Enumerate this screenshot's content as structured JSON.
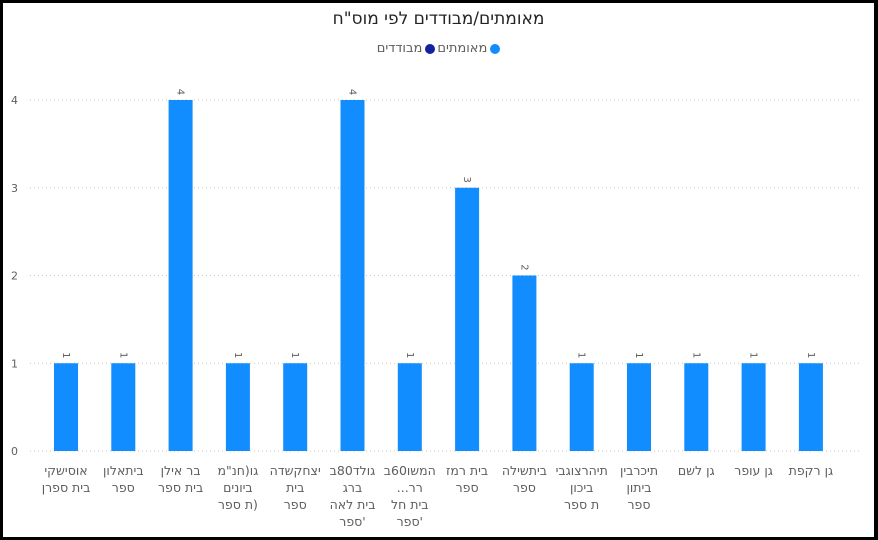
{
  "chart_data": {
    "type": "bar",
    "title": "מאומתים/מבודדים לפי מוס\"ח",
    "legend": [
      {
        "name": "מאומתים",
        "color": "#118dff"
      },
      {
        "name": "מבודדים",
        "color": "#12239e"
      }
    ],
    "legend_position": "top-center",
    "categories": [
      [
        "אוסישקי",
        "בית ספרן"
      ],
      [
        "ביתאלון",
        "ספר"
      ],
      [
        "בר אילן",
        "בית ספר"
      ],
      [
        "גו(חנ\"מ",
        "ביונים",
        "(ת ספר"
      ],
      [
        "יצחקשדה",
        "בית",
        "ספר"
      ],
      [
        "גולד80ב",
        "ברג",
        "בית לאה",
        "'ספר"
      ],
      [
        "המשו60ב",
        "רר...",
        "בית חל",
        "'ספר"
      ],
      [
        "בית רמז",
        "ספר"
      ],
      [
        "ביתשילה",
        "ספר"
      ],
      [
        "תיהרצוגבי",
        "ביכון",
        "ת ספר"
      ],
      [
        "תיכרבין",
        "ביתון",
        "ספר"
      ],
      [
        "גן לשם"
      ],
      [
        "גן עופר"
      ],
      [
        "גן רקפת"
      ]
    ],
    "series": [
      {
        "name": "מאומתים",
        "color": "#118dff",
        "values": [
          1,
          1,
          4,
          1,
          1,
          4,
          1,
          3,
          2,
          1,
          1,
          1,
          1,
          1
        ]
      }
    ],
    "yticks": [
      "0",
      "1",
      "2",
      "3",
      "4"
    ],
    "ylim": [
      0,
      4
    ],
    "grid": true,
    "data_labels": true
  }
}
